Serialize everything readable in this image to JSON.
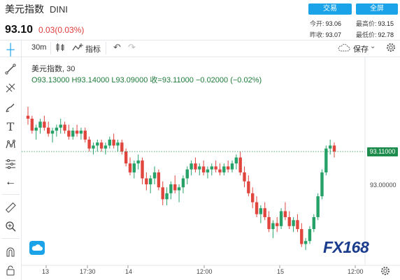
{
  "header": {
    "title": "美元指数",
    "symbol": "DINI",
    "price": "93.10",
    "change": "0.03(0.03%)",
    "buttons": {
      "trade": "交易",
      "full": "全屏"
    },
    "stats": {
      "open_label": "今开:",
      "open": "93.06",
      "high_label": "最高价:",
      "high": "93.15",
      "prev_label": "昨收:",
      "prev": "93.07",
      "low_label": "最低价:",
      "low": "92.78"
    }
  },
  "toolbar": {
    "interval": "30m",
    "indicators": "指标",
    "save": "保存"
  },
  "legend": {
    "title": "美元指数, 30",
    "ohlc": "O93.13000  H93.14000  L93.09000  收=93.11000  −0.02000 (−0.02%)"
  },
  "price_axis": {
    "current": "93.11000",
    "tick": "93.00000"
  },
  "time_axis": [
    "13",
    "17:30",
    "14",
    "12:00",
    "15",
    "12:00"
  ],
  "watermark": "FX168",
  "colors": {
    "up": "#26a269",
    "down": "#e0453e",
    "accent": "#1aa3e8"
  },
  "chart_data": {
    "type": "candlestick",
    "interval": "30m",
    "y_ticks": [
      93.0
    ],
    "last": 93.11,
    "x_ticks": [
      "13",
      "17:30",
      "14",
      "12:00",
      "15",
      "12:00"
    ],
    "candles": [
      [
        93.23,
        93.26,
        93.2,
        93.22
      ],
      [
        93.22,
        93.23,
        93.17,
        93.18
      ],
      [
        93.18,
        93.2,
        93.15,
        93.19
      ],
      [
        93.19,
        93.22,
        93.17,
        93.21
      ],
      [
        93.21,
        93.23,
        93.18,
        93.19
      ],
      [
        93.19,
        93.21,
        93.16,
        93.17
      ],
      [
        93.17,
        93.19,
        93.14,
        93.18
      ],
      [
        93.18,
        93.2,
        93.16,
        93.19
      ],
      [
        93.19,
        93.22,
        93.17,
        93.2
      ],
      [
        93.2,
        93.21,
        93.17,
        93.18
      ],
      [
        93.18,
        93.2,
        93.15,
        93.16
      ],
      [
        93.16,
        93.19,
        93.15,
        93.18
      ],
      [
        93.18,
        93.2,
        93.16,
        93.17
      ],
      [
        93.17,
        93.19,
        93.15,
        93.18
      ],
      [
        93.18,
        93.19,
        93.14,
        93.15
      ],
      [
        93.15,
        93.16,
        93.11,
        93.12
      ],
      [
        93.12,
        93.14,
        93.1,
        93.13
      ],
      [
        93.13,
        93.15,
        93.11,
        93.14
      ],
      [
        93.14,
        93.15,
        93.11,
        93.12
      ],
      [
        93.12,
        93.14,
        93.1,
        93.13
      ],
      [
        93.13,
        93.16,
        93.12,
        93.15
      ],
      [
        93.15,
        93.17,
        93.12,
        93.13
      ],
      [
        93.13,
        93.15,
        93.11,
        93.14
      ],
      [
        93.14,
        93.15,
        93.1,
        93.11
      ],
      [
        93.11,
        93.12,
        93.06,
        93.07
      ],
      [
        93.07,
        93.09,
        93.03,
        93.04
      ],
      [
        93.04,
        93.08,
        93.02,
        93.07
      ],
      [
        93.07,
        93.1,
        93.05,
        93.08
      ],
      [
        93.08,
        93.09,
        93.0,
        93.02
      ],
      [
        93.02,
        93.04,
        92.98,
        93.0
      ],
      [
        93.0,
        93.03,
        92.97,
        93.02
      ],
      [
        93.02,
        93.06,
        93.0,
        93.04
      ],
      [
        93.04,
        93.05,
        92.98,
        92.99
      ],
      [
        92.99,
        93.01,
        92.93,
        92.95
      ],
      [
        92.95,
        92.99,
        92.93,
        92.97
      ],
      [
        92.97,
        93.01,
        92.95,
        93.0
      ],
      [
        93.0,
        93.03,
        92.97,
        92.98
      ],
      [
        92.98,
        93.0,
        92.94,
        92.99
      ],
      [
        92.99,
        93.03,
        92.97,
        93.02
      ],
      [
        93.02,
        93.06,
        93.0,
        93.05
      ],
      [
        93.05,
        93.08,
        93.03,
        93.07
      ],
      [
        93.07,
        93.09,
        93.04,
        93.05
      ],
      [
        93.05,
        93.07,
        93.03,
        93.06
      ],
      [
        93.06,
        93.08,
        93.03,
        93.04
      ],
      [
        93.04,
        93.06,
        93.02,
        93.05
      ],
      [
        93.05,
        93.07,
        93.03,
        93.06
      ],
      [
        93.06,
        93.08,
        93.04,
        93.05
      ],
      [
        93.05,
        93.07,
        93.03,
        93.04
      ],
      [
        93.04,
        93.07,
        93.03,
        93.06
      ],
      [
        93.06,
        93.08,
        93.04,
        93.05
      ],
      [
        93.05,
        93.08,
        93.04,
        93.07
      ],
      [
        93.07,
        93.1,
        93.05,
        93.09
      ],
      [
        93.09,
        93.11,
        93.03,
        93.04
      ],
      [
        93.04,
        93.06,
        92.99,
        93.01
      ],
      [
        93.01,
        93.03,
        92.96,
        92.97
      ],
      [
        92.97,
        92.99,
        92.92,
        92.94
      ],
      [
        92.94,
        92.96,
        92.89,
        92.9
      ],
      [
        92.9,
        92.93,
        92.87,
        92.92
      ],
      [
        92.92,
        92.94,
        92.88,
        92.89
      ],
      [
        92.89,
        92.91,
        92.84,
        92.85
      ],
      [
        92.85,
        92.88,
        92.82,
        92.87
      ],
      [
        92.87,
        92.89,
        92.84,
        92.86
      ],
      [
        92.86,
        92.92,
        92.85,
        92.91
      ],
      [
        92.91,
        92.94,
        92.88,
        92.89
      ],
      [
        92.89,
        92.91,
        92.85,
        92.86
      ],
      [
        92.86,
        92.89,
        92.84,
        92.88
      ],
      [
        92.88,
        92.9,
        92.84,
        92.85
      ],
      [
        92.85,
        92.87,
        92.79,
        92.8
      ],
      [
        92.8,
        92.82,
        92.78,
        92.81
      ],
      [
        92.81,
        92.86,
        92.8,
        92.85
      ],
      [
        92.85,
        92.9,
        92.84,
        92.89
      ],
      [
        92.89,
        92.97,
        92.88,
        92.96
      ],
      [
        92.96,
        93.05,
        92.95,
        93.04
      ],
      [
        93.04,
        93.13,
        93.03,
        93.12
      ],
      [
        93.12,
        93.15,
        93.1,
        93.13
      ],
      [
        93.13,
        93.14,
        93.09,
        93.11
      ]
    ]
  }
}
